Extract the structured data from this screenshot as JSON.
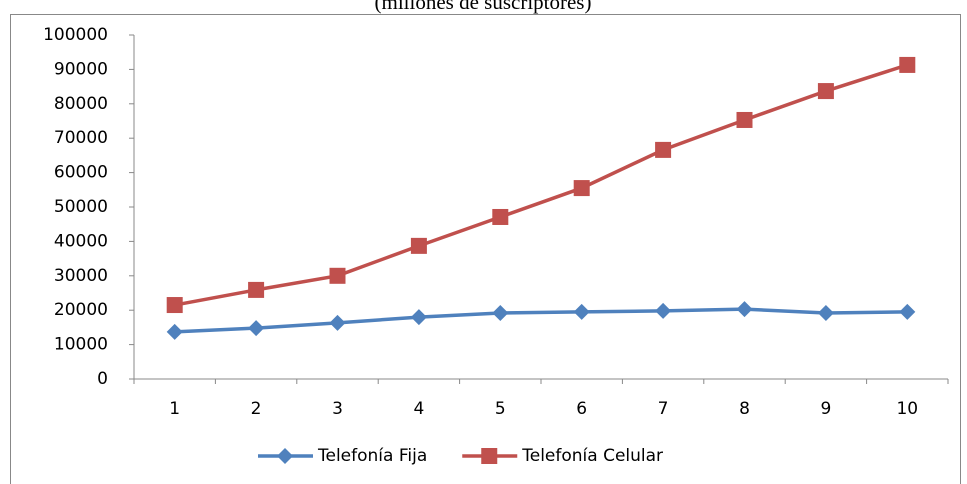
{
  "chart_data": {
    "type": "line",
    "subtitle": "(millones de suscriptores)",
    "categories": [
      1,
      2,
      3,
      4,
      5,
      6,
      7,
      8,
      9,
      10
    ],
    "series": [
      {
        "name": "Telefonía Fija",
        "color": "#4f81bd",
        "marker": "diamond",
        "values": [
          13700,
          14800,
          16300,
          18000,
          19200,
          19500,
          19800,
          20300,
          19200,
          19500
        ]
      },
      {
        "name": "Telefonía Celular",
        "color": "#c0504d",
        "marker": "square",
        "values": [
          21500,
          25900,
          30000,
          38700,
          47100,
          55500,
          66600,
          75300,
          83700,
          91300
        ]
      }
    ],
    "ylim": [
      0,
      100000
    ],
    "yticks": [
      0,
      10000,
      20000,
      30000,
      40000,
      50000,
      60000,
      70000,
      80000,
      90000,
      100000
    ],
    "grid": false,
    "legend": "bottom"
  }
}
